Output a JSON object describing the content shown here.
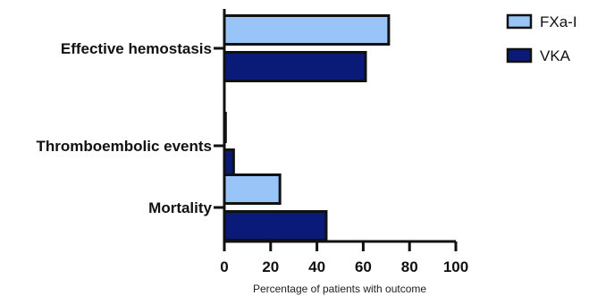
{
  "chart_data": {
    "type": "bar",
    "orientation": "horizontal",
    "categories": [
      "Effective hemostasis",
      "Thromboembolic events",
      "Mortality"
    ],
    "series": [
      {
        "name": "FXa-I",
        "values": [
          71,
          0.5,
          24
        ],
        "color": "#99c4f7"
      },
      {
        "name": "VKA",
        "values": [
          61,
          4,
          44
        ],
        "color": "#0a1a78"
      }
    ],
    "xlabel": "Percentage of patients with outcome",
    "ylabel": "",
    "xlim": [
      0,
      100
    ],
    "x_ticks": [
      "0",
      "20",
      "40",
      "60",
      "80",
      "100"
    ],
    "legend_position": "top-right",
    "grid": false
  }
}
